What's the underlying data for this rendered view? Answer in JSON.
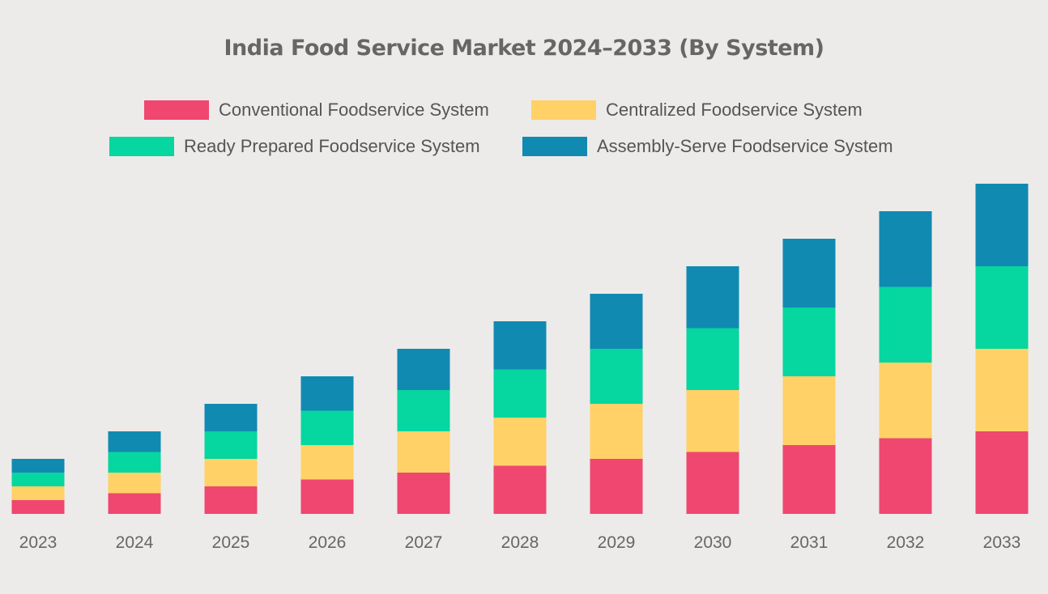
{
  "chart_data": {
    "type": "bar",
    "stacked": true,
    "title": "India Food Service Market 2024–2033 (By System)",
    "xlabel": "",
    "ylabel": "",
    "categories": [
      "2023",
      "2024",
      "2025",
      "2026",
      "2027",
      "2028",
      "2029",
      "2030",
      "2031",
      "2032",
      "2033"
    ],
    "series": [
      {
        "name": "Conventional Foodservice System",
        "color": "#ef476f",
        "values": [
          2,
          3,
          4,
          5,
          6,
          7,
          8,
          9,
          10,
          11,
          12
        ]
      },
      {
        "name": "Centralized Foodservice System",
        "color": "#ffd166",
        "values": [
          2,
          3,
          4,
          5,
          6,
          7,
          8,
          9,
          10,
          11,
          12
        ]
      },
      {
        "name": "Ready Prepared Foodservice System",
        "color": "#06d6a0",
        "values": [
          2,
          3,
          4,
          5,
          6,
          7,
          8,
          9,
          10,
          11,
          12
        ]
      },
      {
        "name": "Assembly-Serve Foodservice System",
        "color": "#118ab2",
        "values": [
          2,
          3,
          4,
          5,
          6,
          7,
          8,
          9,
          10,
          11,
          12
        ]
      }
    ],
    "ylim": [
      0,
      48
    ],
    "grid": false,
    "legend": "top"
  }
}
